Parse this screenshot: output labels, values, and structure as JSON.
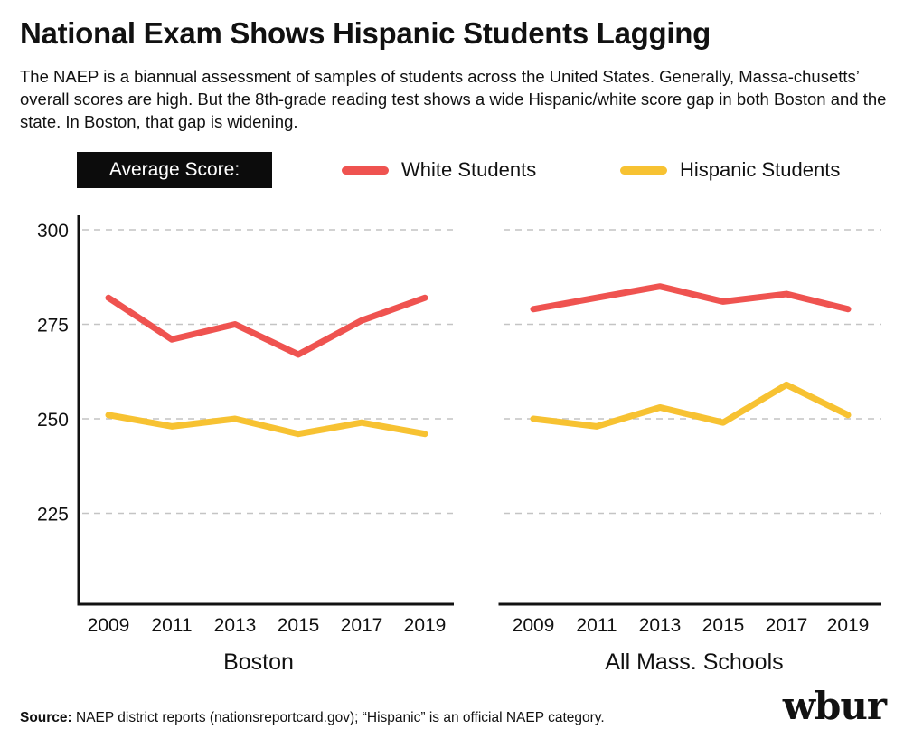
{
  "title": "National Exam Shows Hispanic Students Lagging",
  "description": "The NAEP is a biannual assessment of samples of students across the United States. Generally, Massa-chusetts’ overall scores are high. But the 8th-grade reading test shows a wide Hispanic/white score gap in both Boston and the state. In Boston, that gap is widening.",
  "legend": {
    "label": "Average Score:",
    "items": [
      {
        "name": "White Students",
        "color": "#ef5350"
      },
      {
        "name": "Hispanic Students",
        "color": "#f7c232"
      }
    ]
  },
  "chart_data": [
    {
      "type": "line",
      "title": "Boston",
      "x": [
        "2009",
        "2011",
        "2013",
        "2015",
        "2017",
        "2019"
      ],
      "ylim": [
        200,
        300
      ],
      "yticks": [
        225,
        250,
        275,
        300
      ],
      "grid": true,
      "series": [
        {
          "name": "White Students",
          "color": "#ef5350",
          "values": [
            282,
            271,
            275,
            267,
            276,
            282
          ]
        },
        {
          "name": "Hispanic Students",
          "color": "#f7c232",
          "values": [
            251,
            248,
            250,
            246,
            249,
            246
          ]
        }
      ]
    },
    {
      "type": "line",
      "title": "All Mass. Schools",
      "x": [
        "2009",
        "2011",
        "2013",
        "2015",
        "2017",
        "2019"
      ],
      "ylim": [
        200,
        300
      ],
      "yticks": [
        225,
        250,
        275,
        300
      ],
      "grid": true,
      "series": [
        {
          "name": "White Students",
          "color": "#ef5350",
          "values": [
            279,
            282,
            285,
            281,
            283,
            279
          ]
        },
        {
          "name": "Hispanic Students",
          "color": "#f7c232",
          "values": [
            250,
            248,
            253,
            249,
            259,
            251
          ]
        }
      ]
    }
  ],
  "source": {
    "label": "Source:",
    "text": " NAEP district reports (nationsreportcard.gov); “Hispanic” is an official NAEP category."
  },
  "logo": "wbur"
}
